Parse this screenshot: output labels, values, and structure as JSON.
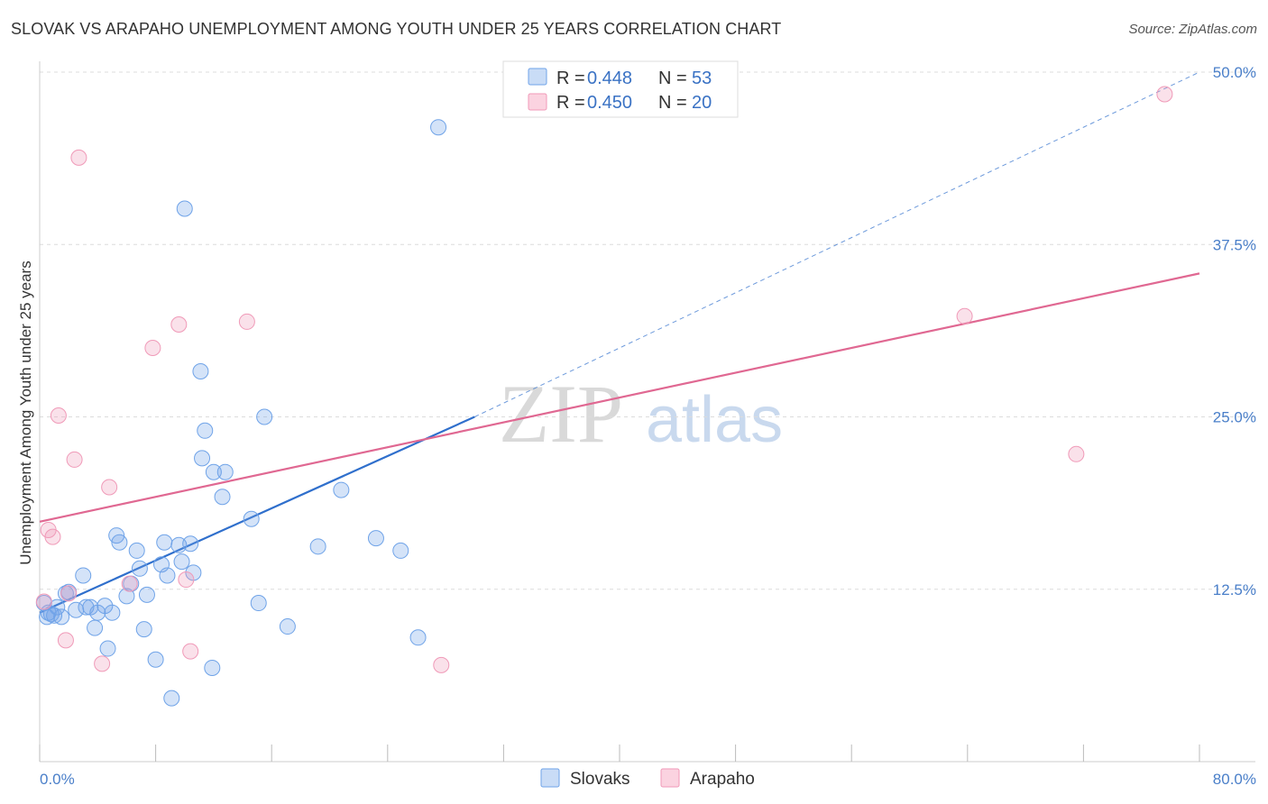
{
  "title": "SLOVAK VS ARAPAHO UNEMPLOYMENT AMONG YOUTH UNDER 25 YEARS CORRELATION CHART",
  "source": "Source: ZipAtlas.com",
  "watermark": {
    "zip": "ZIP",
    "atlas": "atlas"
  },
  "legend_top": [
    {
      "r_label": "R = ",
      "r_value": "0.448",
      "n_label": "N = ",
      "n_value": "53"
    },
    {
      "r_label": "R = ",
      "r_value": "0.450",
      "n_label": "N = ",
      "n_value": "20"
    }
  ],
  "chart_data": {
    "type": "scatter",
    "title": "SLOVAK VS ARAPAHO UNEMPLOYMENT AMONG YOUTH UNDER 25 YEARS CORRELATION CHART",
    "xlabel": "",
    "ylabel": "Unemployment Among Youth under 25 years",
    "xlim": [
      0,
      80
    ],
    "ylim": [
      0,
      50
    ],
    "x_tick_labels": [
      "0.0%",
      "80.0%"
    ],
    "y_ticks": [
      12.5,
      25.0,
      37.5,
      50.0
    ],
    "y_tick_labels": [
      "12.5%",
      "25.0%",
      "37.5%",
      "50.0%"
    ],
    "grid": true,
    "legend_position": "top-center",
    "colors": {
      "Slovaks": "#6fa3e8",
      "Arapaho": "#f09ab8",
      "slovak_line": "#2f6fcc",
      "arapaho_line": "#e06892"
    },
    "series": [
      {
        "name": "Slovaks",
        "r": 0.448,
        "n": 53,
        "points": [
          [
            0.3,
            11.5
          ],
          [
            0.5,
            10.5
          ],
          [
            0.8,
            10.7
          ],
          [
            1.2,
            11.2
          ],
          [
            1.5,
            10.5
          ],
          [
            1.8,
            12.2
          ],
          [
            2.0,
            12.3
          ],
          [
            2.5,
            11.0
          ],
          [
            3.0,
            13.5
          ],
          [
            3.2,
            11.2
          ],
          [
            3.5,
            11.2
          ],
          [
            3.8,
            9.7
          ],
          [
            4.0,
            10.8
          ],
          [
            4.5,
            11.3
          ],
          [
            4.7,
            8.2
          ],
          [
            5.0,
            10.8
          ],
          [
            5.3,
            16.4
          ],
          [
            5.5,
            15.9
          ],
          [
            6.0,
            12.0
          ],
          [
            6.3,
            12.9
          ],
          [
            6.7,
            15.3
          ],
          [
            6.9,
            14.0
          ],
          [
            7.2,
            9.6
          ],
          [
            7.4,
            12.1
          ],
          [
            8.0,
            7.4
          ],
          [
            8.4,
            14.3
          ],
          [
            8.6,
            15.9
          ],
          [
            8.8,
            13.5
          ],
          [
            9.1,
            4.6
          ],
          [
            9.6,
            15.7
          ],
          [
            9.8,
            14.5
          ],
          [
            10.0,
            40.1
          ],
          [
            10.4,
            15.8
          ],
          [
            10.6,
            13.7
          ],
          [
            11.1,
            28.3
          ],
          [
            11.4,
            24.0
          ],
          [
            11.2,
            22.0
          ],
          [
            11.9,
            6.8
          ],
          [
            12.0,
            21.0
          ],
          [
            12.8,
            21.0
          ],
          [
            12.6,
            19.2
          ],
          [
            14.6,
            17.6
          ],
          [
            15.1,
            11.5
          ],
          [
            15.5,
            25.0
          ],
          [
            17.1,
            9.8
          ],
          [
            19.2,
            15.6
          ],
          [
            20.8,
            19.7
          ],
          [
            23.2,
            16.2
          ],
          [
            24.9,
            15.3
          ],
          [
            26.1,
            9.0
          ],
          [
            27.5,
            46.0
          ],
          [
            0.6,
            10.8
          ],
          [
            1.0,
            10.6
          ]
        ]
      },
      {
        "name": "Arapaho",
        "r": 0.45,
        "n": 20,
        "points": [
          [
            0.3,
            11.6
          ],
          [
            0.6,
            16.8
          ],
          [
            0.9,
            16.3
          ],
          [
            1.3,
            25.1
          ],
          [
            1.8,
            8.8
          ],
          [
            2.0,
            12.2
          ],
          [
            2.4,
            21.9
          ],
          [
            2.7,
            43.8
          ],
          [
            4.3,
            7.1
          ],
          [
            4.8,
            19.9
          ],
          [
            6.2,
            12.9
          ],
          [
            7.8,
            30.0
          ],
          [
            9.6,
            31.7
          ],
          [
            10.1,
            13.2
          ],
          [
            10.4,
            8.0
          ],
          [
            14.3,
            31.9
          ],
          [
            27.7,
            7.0
          ],
          [
            63.8,
            32.3
          ],
          [
            71.5,
            22.3
          ],
          [
            77.6,
            48.4
          ]
        ]
      }
    ],
    "trend_lines": [
      {
        "series": "Slovaks",
        "solid_from": [
          0,
          10.8
        ],
        "solid_to": [
          30,
          25.0
        ],
        "dashed_to": [
          80,
          50.0
        ]
      },
      {
        "series": "Arapaho",
        "from": [
          0,
          17.4
        ],
        "to": [
          80,
          35.4
        ]
      }
    ]
  },
  "legend_bottom": [
    "Slovaks",
    "Arapaho"
  ]
}
